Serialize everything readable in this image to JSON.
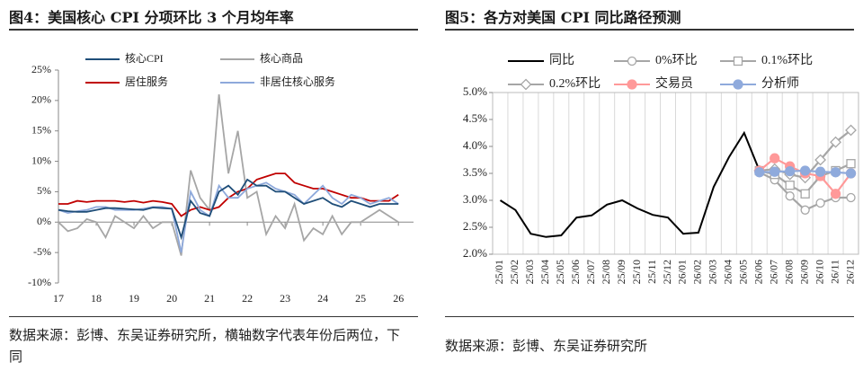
{
  "chart_data": [
    {
      "type": "line",
      "title": "图4：美国核心 CPI 分项环比 3 个月均年率",
      "source": "数据来源：彭博、东吴证券研究所，横轴数字代表年份后两位，下同",
      "x": [
        17,
        17.25,
        17.5,
        17.75,
        18,
        18.25,
        18.5,
        18.75,
        19,
        19.25,
        19.5,
        19.75,
        20,
        20.25,
        20.5,
        20.75,
        21,
        21.25,
        21.5,
        21.75,
        22,
        22.25,
        22.5,
        22.75,
        23,
        23.25,
        23.5,
        23.75,
        24,
        24.25,
        24.5,
        24.75,
        25,
        25.25,
        25.5,
        25.75,
        26
      ],
      "series": [
        {
          "name": "核心CPI",
          "color": "#1f4e79",
          "values": [
            2.0,
            1.8,
            1.7,
            1.7,
            2.0,
            2.3,
            2.3,
            2.2,
            2.1,
            2.0,
            2.4,
            2.3,
            2.2,
            -2.5,
            3.5,
            1.5,
            1.0,
            5.0,
            6.0,
            4.5,
            7.0,
            6.0,
            6.0,
            5.0,
            5.0,
            4.0,
            3.0,
            3.5,
            4.0,
            3.0,
            2.5,
            3.5,
            3.0,
            2.5,
            3.0,
            3.0,
            3.0
          ]
        },
        {
          "name": "核心商品",
          "color": "#a6a6a6",
          "values": [
            0,
            -1.5,
            -1.0,
            0.5,
            0,
            -2.5,
            1.0,
            0,
            -1.0,
            1.0,
            -1.0,
            0,
            0,
            -5.5,
            8.5,
            4.0,
            2.0,
            21.0,
            8.0,
            15.0,
            4.0,
            5.0,
            -2.0,
            1.0,
            -1.0,
            3.0,
            -3.0,
            -1.0,
            -2.0,
            1.0,
            -2.0,
            0,
            0,
            1.0,
            2.0,
            1.0,
            0
          ]
        },
        {
          "name": "居住服务",
          "color": "#c00000",
          "values": [
            3.0,
            3.0,
            3.5,
            3.3,
            3.5,
            3.5,
            3.5,
            3.3,
            3.5,
            3.2,
            3.5,
            3.3,
            3.0,
            1.0,
            2.0,
            2.5,
            2.0,
            2.5,
            4.0,
            5.0,
            5.5,
            7.0,
            7.5,
            8.0,
            8.0,
            6.5,
            6.0,
            5.5,
            5.5,
            5.0,
            4.5,
            4.0,
            4.0,
            3.5,
            3.5,
            3.5,
            4.5
          ]
        },
        {
          "name": "非居住核心服务",
          "color": "#8ea9db",
          "values": [
            2.0,
            1.5,
            1.8,
            2.0,
            2.5,
            2.5,
            2.0,
            2.0,
            2.0,
            2.2,
            2.5,
            2.5,
            2.2,
            -5.0,
            5.0,
            2.0,
            1.0,
            6.0,
            4.0,
            4.0,
            5.5,
            6.0,
            6.5,
            5.5,
            5.0,
            4.5,
            3.0,
            4.5,
            6.0,
            4.0,
            3.0,
            4.5,
            4.0,
            3.0,
            3.5,
            4.0,
            3.0
          ]
        }
      ],
      "xlim": [
        17,
        26.4
      ],
      "xticks": [
        17,
        18,
        19,
        20,
        21,
        22,
        23,
        24,
        25,
        26
      ],
      "ylim": [
        -10,
        25
      ],
      "yticks": [
        {
          "value": -10,
          "label": "-10%"
        },
        {
          "value": -5,
          "label": "-5%"
        },
        {
          "value": 0,
          "label": "0%"
        },
        {
          "value": 5,
          "label": "5%"
        },
        {
          "value": 10,
          "label": "10%"
        },
        {
          "value": 15,
          "label": "15%"
        },
        {
          "value": 20,
          "label": "20%"
        },
        {
          "value": 25,
          "label": "25%"
        }
      ]
    },
    {
      "type": "line",
      "title": "图5：各方对美国 CPI 同比路径预测",
      "source": "数据来源：彭博、东吴证券研究所",
      "categories": [
        "25/01",
        "25/02",
        "25/03",
        "25/04",
        "25/05",
        "25/06",
        "25/07",
        "25/08",
        "25/09",
        "25/10",
        "25/11",
        "25/12",
        "26/01",
        "26/02",
        "26/03",
        "26/04",
        "26/05",
        "26/06",
        "26/07",
        "26/08",
        "26/09",
        "26/10",
        "26/11",
        "26/12"
      ],
      "series": [
        {
          "name": "同比",
          "color": "#000000",
          "marker": "none",
          "values": [
            3.0,
            2.82,
            2.38,
            2.32,
            2.35,
            2.68,
            2.72,
            2.92,
            3.0,
            2.85,
            2.73,
            2.68,
            2.38,
            2.4,
            3.25,
            3.8,
            4.25,
            3.55,
            null,
            null,
            null,
            null,
            null,
            null
          ]
        },
        {
          "name": "0%环比",
          "color": "#a6a6a6",
          "marker": "circle-open",
          "values": [
            null,
            null,
            null,
            null,
            null,
            null,
            null,
            null,
            null,
            null,
            null,
            null,
            null,
            null,
            null,
            null,
            null,
            3.52,
            3.38,
            3.08,
            2.82,
            2.95,
            3.05,
            3.05
          ]
        },
        {
          "name": "0.1%环比",
          "color": "#a6a6a6",
          "marker": "square-open",
          "values": [
            null,
            null,
            null,
            null,
            null,
            null,
            null,
            null,
            null,
            null,
            null,
            null,
            null,
            null,
            null,
            null,
            null,
            3.55,
            3.48,
            3.28,
            3.12,
            3.45,
            3.55,
            3.68
          ]
        },
        {
          "name": "0.2%环比",
          "color": "#a6a6a6",
          "marker": "diamond-open",
          "values": [
            null,
            null,
            null,
            null,
            null,
            null,
            null,
            null,
            null,
            null,
            null,
            null,
            null,
            null,
            null,
            null,
            null,
            3.55,
            3.58,
            3.48,
            3.42,
            3.75,
            4.08,
            4.3
          ]
        },
        {
          "name": "交易员",
          "color": "#ff9999",
          "marker": "circle",
          "values": [
            null,
            null,
            null,
            null,
            null,
            null,
            null,
            null,
            null,
            null,
            null,
            null,
            null,
            null,
            null,
            null,
            null,
            3.55,
            3.78,
            3.63,
            3.5,
            3.45,
            3.12,
            3.5
          ]
        },
        {
          "name": "分析师",
          "color": "#8faadc",
          "marker": "circle",
          "values": [
            null,
            null,
            null,
            null,
            null,
            null,
            null,
            null,
            null,
            null,
            null,
            null,
            null,
            null,
            null,
            null,
            null,
            3.52,
            3.53,
            3.54,
            3.55,
            3.53,
            3.52,
            3.5
          ]
        }
      ],
      "ylim": [
        2,
        5
      ],
      "yticks": [
        {
          "value": 2,
          "label": "2.0%"
        },
        {
          "value": 2.5,
          "label": "2.5%"
        },
        {
          "value": 3,
          "label": "3.0%"
        },
        {
          "value": 3.5,
          "label": "3.5%"
        },
        {
          "value": 4,
          "label": "4.0%"
        },
        {
          "value": 4.5,
          "label": "4.5%"
        },
        {
          "value": 5,
          "label": "5.0%"
        }
      ],
      "grid": true
    }
  ]
}
